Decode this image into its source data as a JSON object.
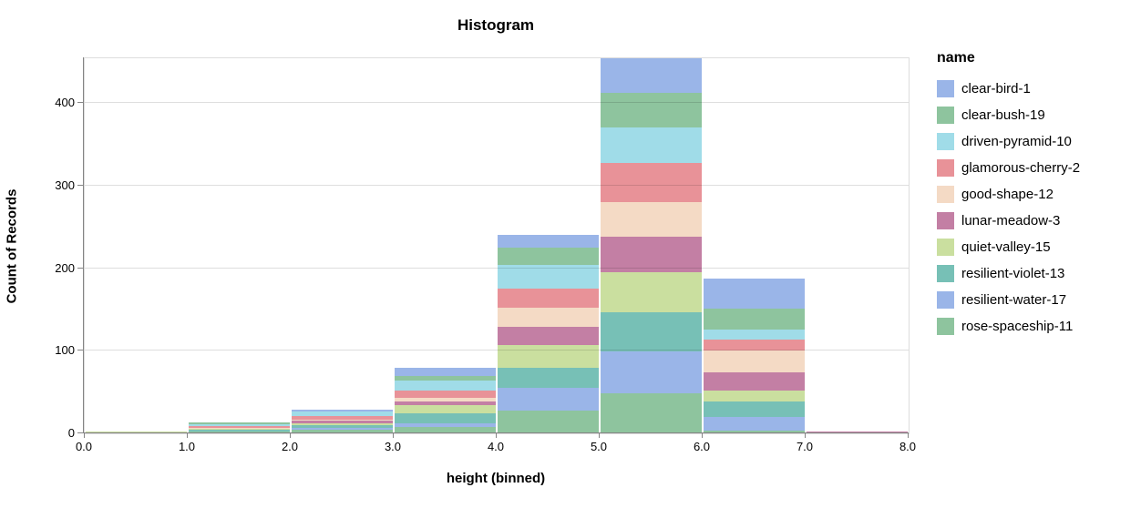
{
  "title": "Histogram",
  "legend": {
    "title": "name"
  },
  "axes": {
    "x": {
      "title": "height (binned)",
      "tick_labels": [
        "0.0",
        "1.0",
        "2.0",
        "3.0",
        "4.0",
        "5.0",
        "6.0",
        "7.0",
        "8.0"
      ]
    },
    "y": {
      "title": "Count of Records",
      "tick_labels": [
        "0",
        "100",
        "200",
        "300",
        "400"
      ],
      "tick_values": [
        0,
        100,
        200,
        300,
        400
      ]
    }
  },
  "chart_data": {
    "type": "bar",
    "subtype": "stacked-histogram",
    "title": "Histogram",
    "xlabel": "height (binned)",
    "ylabel": "Count of Records",
    "legend_title": "name",
    "legend_position": "right",
    "grid": true,
    "xlim": [
      0,
      8
    ],
    "ylim": [
      0,
      454
    ],
    "bin_edges": [
      0,
      1,
      2,
      3,
      4,
      5,
      6,
      7,
      8
    ],
    "bin_totals": [
      2,
      13,
      29,
      80,
      240,
      454,
      187,
      2
    ],
    "series": [
      {
        "name": "clear-bird-1",
        "color": "#9ab5e8",
        "values": [
          0,
          0,
          3,
          10,
          15,
          42,
          36,
          0
        ]
      },
      {
        "name": "clear-bush-19",
        "color": "#8ec49e",
        "values": [
          0,
          2,
          0,
          6,
          21,
          42,
          25,
          0
        ]
      },
      {
        "name": "driven-pyramid-10",
        "color": "#a0dce8",
        "values": [
          0,
          2,
          5,
          12,
          29,
          43,
          12,
          0
        ]
      },
      {
        "name": "glamorous-cherry-2",
        "color": "#e89298",
        "values": [
          0,
          2,
          4,
          9,
          23,
          47,
          14,
          0
        ]
      },
      {
        "name": "good-shape-12",
        "color": "#f4dac5",
        "values": [
          0,
          1,
          2,
          4,
          23,
          42,
          26,
          0
        ]
      },
      {
        "name": "lunar-meadow-3",
        "color": "#c37fa4",
        "values": [
          0,
          1,
          3,
          5,
          22,
          43,
          22,
          2
        ]
      },
      {
        "name": "quiet-valley-15",
        "color": "#cadf9f",
        "values": [
          2,
          1,
          2,
          10,
          28,
          48,
          13,
          0
        ]
      },
      {
        "name": "resilient-violet-13",
        "color": "#77c0b6",
        "values": [
          0,
          2,
          3,
          12,
          24,
          48,
          19,
          0
        ]
      },
      {
        "name": "resilient-water-17",
        "color": "#9ab5e8",
        "values": [
          0,
          0,
          3,
          4,
          27,
          51,
          17,
          0
        ]
      },
      {
        "name": "rose-spaceship-11",
        "color": "#8ec49e",
        "values": [
          0,
          2,
          4,
          8,
          28,
          48,
          3,
          0
        ]
      }
    ]
  }
}
